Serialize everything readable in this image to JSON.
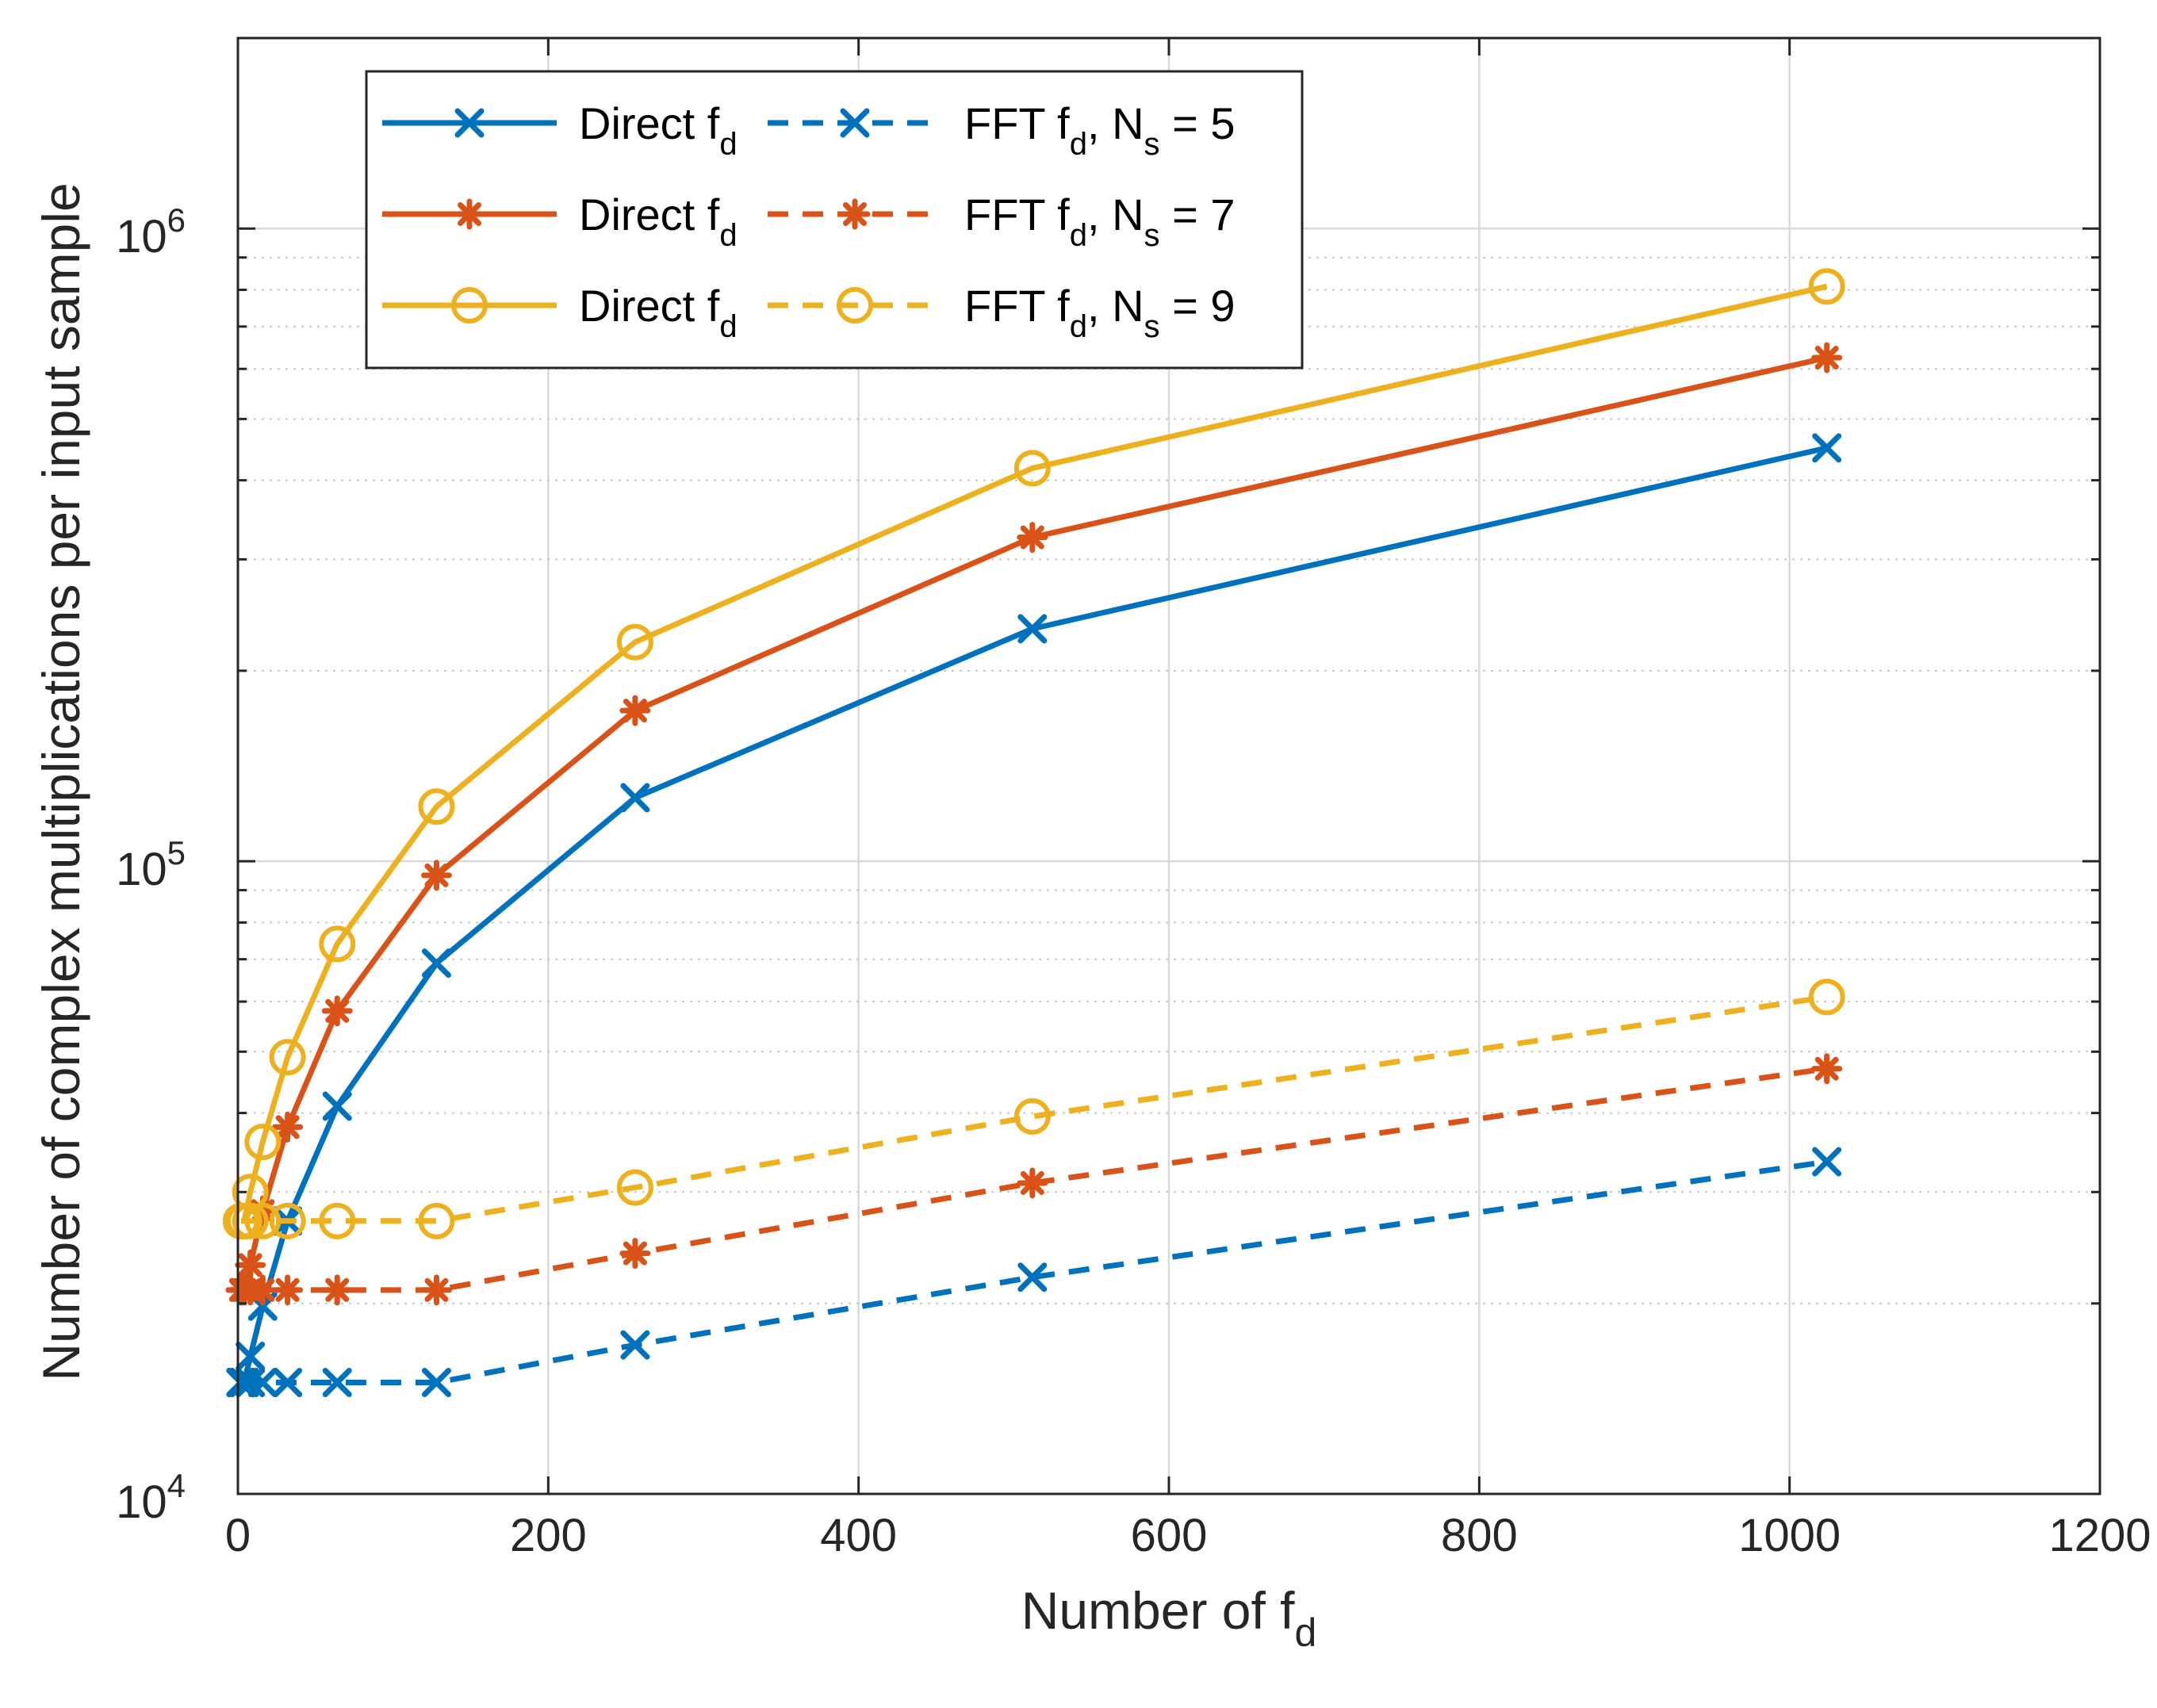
{
  "chart_data": {
    "type": "line",
    "title": "",
    "xlabel": "Number of f",
    "xlabel_sub": "d",
    "ylabel": "Number of complex multiplications per input sample",
    "x_scale": "linear",
    "y_scale": "log",
    "xlim": [
      0,
      1200
    ],
    "ylim": [
      10000,
      2000000
    ],
    "xticks": [
      0,
      200,
      400,
      600,
      800,
      1000,
      1200
    ],
    "xtick_labels": [
      "0",
      "200",
      "400",
      "600",
      "800",
      "1000",
      "1200"
    ],
    "ytick_labels": [
      {
        "base": "10",
        "exp": "4"
      },
      {
        "base": "10",
        "exp": "5"
      },
      {
        "base": "10",
        "exp": "6"
      }
    ],
    "grid": true,
    "x": [
      2,
      4,
      8,
      16,
      32,
      64,
      128,
      256,
      512,
      1024
    ],
    "series": [
      {
        "name": "Direct f_d, N_s = 5",
        "label_main": "Direct f",
        "label_sub": "d",
        "color": "#0072BD",
        "style": "solid",
        "marker": "x",
        "values": [
          15000,
          15000,
          16500,
          19800,
          27000,
          41000,
          69000,
          126000,
          233000,
          450000
        ]
      },
      {
        "name": "FFT f_d, N_s = 5",
        "label_main": "FFT f",
        "label_sub": "d",
        "label_tail": ", N",
        "label_tail_sub": "s",
        "label_end": " = 5",
        "color": "#0072BD",
        "style": "dashed",
        "marker": "x",
        "values": [
          15000,
          15000,
          15000,
          15000,
          15000,
          15000,
          15000,
          17200,
          22000,
          33500
        ]
      },
      {
        "name": "Direct f_d, N_s = 7",
        "label_main": "Direct f",
        "label_sub": "d",
        "color": "#D95319",
        "style": "solid",
        "marker": "*",
        "values": [
          21000,
          21000,
          23000,
          28000,
          38000,
          58000,
          95000,
          173000,
          325000,
          625000
        ]
      },
      {
        "name": "FFT f_d, N_s = 7",
        "label_main": "FFT f",
        "label_sub": "d",
        "label_tail": ", N",
        "label_tail_sub": "s",
        "label_end": " = 7",
        "color": "#D95319",
        "style": "dashed",
        "marker": "*",
        "values": [
          21000,
          21000,
          21000,
          21000,
          21000,
          21000,
          21000,
          24000,
          31000,
          47000
        ]
      },
      {
        "name": "Direct f_d, N_s = 9",
        "label_main": "Direct f",
        "label_sub": "d",
        "color": "#EDB120",
        "style": "solid",
        "marker": "o",
        "values": [
          27000,
          27000,
          30000,
          36000,
          49000,
          74000,
          122000,
          222000,
          418000,
          810000
        ]
      },
      {
        "name": "FFT f_d, N_s = 9",
        "label_main": "FFT f",
        "label_sub": "d",
        "label_tail": ", N",
        "label_tail_sub": "s",
        "label_end": " = 9",
        "color": "#EDB120",
        "style": "dashed",
        "marker": "o",
        "values": [
          27000,
          27000,
          27000,
          27000,
          27000,
          27000,
          27000,
          30500,
          39500,
          61000
        ]
      }
    ],
    "legend": {
      "location": "top-left",
      "columns": 2
    }
  }
}
